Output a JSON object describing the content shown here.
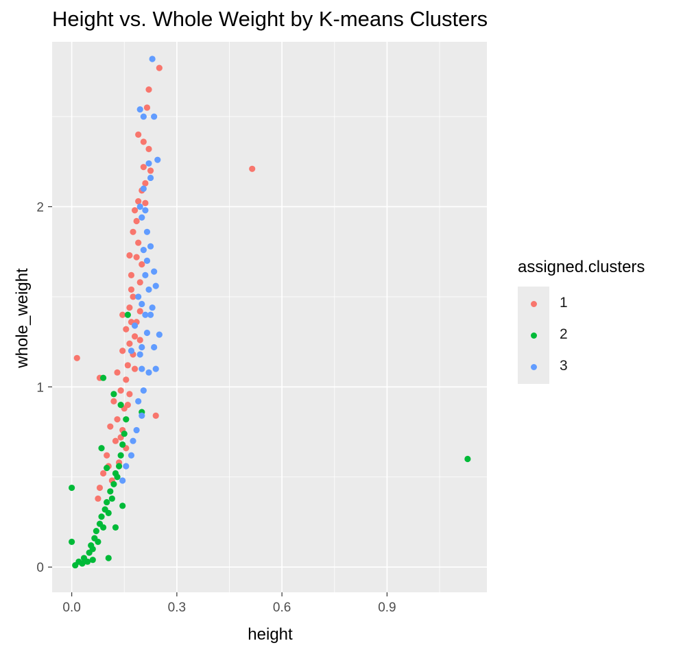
{
  "chart_data": {
    "type": "scatter",
    "title": "Height vs. Whole Weight by K-means Clusters",
    "xlabel": "height",
    "ylabel": "whole_weight",
    "xlim": [
      -0.056,
      1.185
    ],
    "ylim": [
      -0.14,
      2.915
    ],
    "x_ticks": [
      0.0,
      0.3,
      0.6,
      0.9
    ],
    "x_tick_labels": [
      "0.0",
      "0.3",
      "0.6",
      "0.9"
    ],
    "y_ticks": [
      0,
      1,
      2
    ],
    "y_tick_labels": [
      "0",
      "1",
      "2"
    ],
    "grid": true,
    "legend": {
      "title": "assigned.clusters",
      "placement": "right"
    },
    "series": [
      {
        "name": "1",
        "color": "#F8766D",
        "points": [
          [
            0.015,
            1.16
          ],
          [
            0.515,
            2.21
          ],
          [
            0.25,
            2.77
          ],
          [
            0.22,
            2.65
          ],
          [
            0.215,
            2.55
          ],
          [
            0.19,
            2.4
          ],
          [
            0.205,
            2.36
          ],
          [
            0.22,
            2.32
          ],
          [
            0.225,
            2.2
          ],
          [
            0.21,
            2.13
          ],
          [
            0.2,
            2.09
          ],
          [
            0.18,
            1.98
          ],
          [
            0.175,
            1.86
          ],
          [
            0.19,
            1.8
          ],
          [
            0.185,
            1.72
          ],
          [
            0.165,
            1.73
          ],
          [
            0.17,
            1.62
          ],
          [
            0.195,
            1.58
          ],
          [
            0.175,
            1.5
          ],
          [
            0.165,
            1.44
          ],
          [
            0.195,
            1.42
          ],
          [
            0.185,
            1.36
          ],
          [
            0.155,
            1.32
          ],
          [
            0.18,
            1.28
          ],
          [
            0.165,
            1.24
          ],
          [
            0.145,
            1.2
          ],
          [
            0.175,
            1.18
          ],
          [
            0.16,
            1.12
          ],
          [
            0.13,
            1.08
          ],
          [
            0.08,
            1.05
          ],
          [
            0.155,
            1.04
          ],
          [
            0.14,
            0.98
          ],
          [
            0.165,
            0.96
          ],
          [
            0.24,
            0.84
          ],
          [
            0.15,
            0.88
          ],
          [
            0.12,
            0.92
          ],
          [
            0.13,
            0.82
          ],
          [
            0.145,
            0.76
          ],
          [
            0.11,
            0.78
          ],
          [
            0.125,
            0.7
          ],
          [
            0.155,
            0.66
          ],
          [
            0.1,
            0.62
          ],
          [
            0.135,
            0.58
          ],
          [
            0.09,
            0.52
          ],
          [
            0.115,
            0.48
          ],
          [
            0.08,
            0.44
          ],
          [
            0.075,
            0.38
          ],
          [
            0.17,
            1.54
          ],
          [
            0.2,
            1.68
          ],
          [
            0.185,
            1.92
          ],
          [
            0.205,
            2.22
          ],
          [
            0.19,
            2.03
          ],
          [
            0.17,
            1.36
          ],
          [
            0.145,
            1.4
          ],
          [
            0.195,
            1.26
          ],
          [
            0.18,
            1.1
          ],
          [
            0.16,
            0.9
          ],
          [
            0.14,
            0.72
          ],
          [
            0.105,
            0.56
          ],
          [
            0.21,
            2.02
          ]
        ]
      },
      {
        "name": "2",
        "color": "#00BA38",
        "points": [
          [
            1.13,
            0.6
          ],
          [
            0.0,
            0.44
          ],
          [
            0.0,
            0.14
          ],
          [
            0.01,
            0.01
          ],
          [
            0.02,
            0.03
          ],
          [
            0.03,
            0.02
          ],
          [
            0.035,
            0.05
          ],
          [
            0.045,
            0.03
          ],
          [
            0.05,
            0.08
          ],
          [
            0.055,
            0.12
          ],
          [
            0.06,
            0.1
          ],
          [
            0.065,
            0.16
          ],
          [
            0.07,
            0.2
          ],
          [
            0.075,
            0.14
          ],
          [
            0.08,
            0.24
          ],
          [
            0.085,
            0.28
          ],
          [
            0.09,
            0.22
          ],
          [
            0.095,
            0.32
          ],
          [
            0.1,
            0.36
          ],
          [
            0.105,
            0.3
          ],
          [
            0.11,
            0.42
          ],
          [
            0.115,
            0.38
          ],
          [
            0.12,
            0.46
          ],
          [
            0.125,
            0.52
          ],
          [
            0.13,
            0.5
          ],
          [
            0.135,
            0.56
          ],
          [
            0.14,
            0.62
          ],
          [
            0.145,
            0.68
          ],
          [
            0.15,
            0.74
          ],
          [
            0.155,
            0.82
          ],
          [
            0.14,
            0.9
          ],
          [
            0.12,
            0.96
          ],
          [
            0.09,
            1.05
          ],
          [
            0.2,
            0.86
          ],
          [
            0.105,
            0.05
          ],
          [
            0.125,
            0.22
          ],
          [
            0.145,
            0.34
          ],
          [
            0.085,
            0.66
          ],
          [
            0.1,
            0.55
          ],
          [
            0.06,
            0.04
          ],
          [
            0.16,
            1.4
          ]
        ]
      },
      {
        "name": "3",
        "color": "#619CFF",
        "points": [
          [
            0.23,
            2.82
          ],
          [
            0.195,
            2.54
          ],
          [
            0.205,
            2.5
          ],
          [
            0.235,
            2.5
          ],
          [
            0.245,
            2.26
          ],
          [
            0.22,
            2.24
          ],
          [
            0.205,
            2.1
          ],
          [
            0.21,
            1.98
          ],
          [
            0.2,
            1.94
          ],
          [
            0.215,
            1.86
          ],
          [
            0.225,
            1.78
          ],
          [
            0.235,
            1.64
          ],
          [
            0.21,
            1.62
          ],
          [
            0.22,
            1.54
          ],
          [
            0.24,
            1.56
          ],
          [
            0.23,
            1.44
          ],
          [
            0.2,
            1.46
          ],
          [
            0.225,
            1.4
          ],
          [
            0.25,
            1.29
          ],
          [
            0.215,
            1.3
          ],
          [
            0.2,
            1.22
          ],
          [
            0.235,
            1.22
          ],
          [
            0.24,
            1.1
          ],
          [
            0.22,
            1.08
          ],
          [
            0.2,
            1.1
          ],
          [
            0.205,
            0.98
          ],
          [
            0.19,
            0.92
          ],
          [
            0.2,
            0.84
          ],
          [
            0.185,
            0.76
          ],
          [
            0.175,
            0.7
          ],
          [
            0.17,
            0.62
          ],
          [
            0.155,
            0.56
          ],
          [
            0.145,
            0.48
          ],
          [
            0.17,
            1.2
          ],
          [
            0.18,
            1.34
          ],
          [
            0.19,
            1.5
          ],
          [
            0.205,
            1.76
          ],
          [
            0.195,
            2.0
          ],
          [
            0.225,
            2.16
          ],
          [
            0.215,
            1.7
          ],
          [
            0.21,
            1.4
          ],
          [
            0.195,
            1.18
          ]
        ]
      }
    ]
  }
}
